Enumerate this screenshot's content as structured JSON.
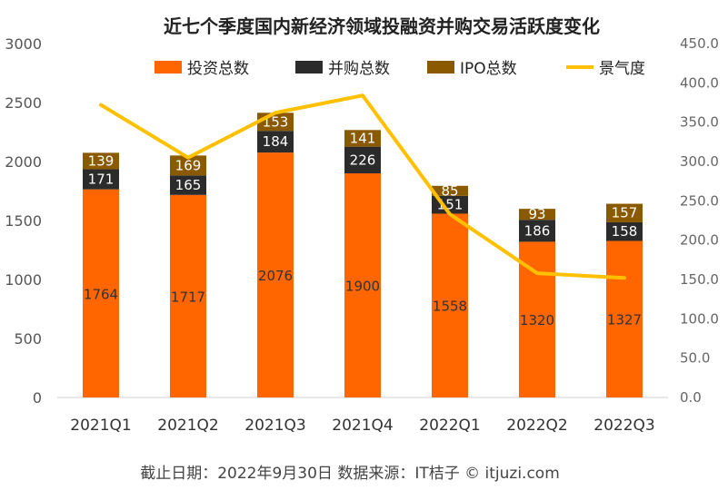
{
  "chart_data": {
    "type": "bar",
    "stacked": true,
    "title": "近七个季度国内新经济领域投融资并购交易活跃度变化",
    "categories": [
      "2021Q1",
      "2021Q2",
      "2021Q3",
      "2021Q4",
      "2022Q1",
      "2022Q2",
      "2022Q3"
    ],
    "series": [
      {
        "name": "投资总数",
        "color": "#ff6600",
        "values": [
          1764,
          1717,
          2076,
          1900,
          1558,
          1320,
          1327
        ]
      },
      {
        "name": "并购总数",
        "color": "#2b2b2b",
        "values": [
          171,
          165,
          184,
          226,
          151,
          186,
          158
        ]
      },
      {
        "name": "IPO总数",
        "color": "#8b5a00",
        "values": [
          139,
          169,
          153,
          141,
          85,
          93,
          157
        ]
      }
    ],
    "line_series": {
      "name": "景气度",
      "color": "#ffc000",
      "axis": "right",
      "values": [
        372,
        305,
        362,
        384,
        233,
        158,
        152
      ]
    },
    "y_left": {
      "min": 0,
      "max": 3000,
      "ticks": [
        "0",
        "500",
        "1000",
        "1500",
        "2000",
        "2500",
        "3000"
      ]
    },
    "y_right": {
      "min": 0,
      "max": 450,
      "ticks": [
        "0.0",
        "50.0",
        "100.0",
        "150.0",
        "200.0",
        "250.0",
        "300.0",
        "350.0",
        "400.0",
        "450.0"
      ]
    },
    "legend": "top",
    "grid": false
  },
  "footer": "截止日期：2022年9月30日    数据来源：IT桔子 © itjuzi.com"
}
